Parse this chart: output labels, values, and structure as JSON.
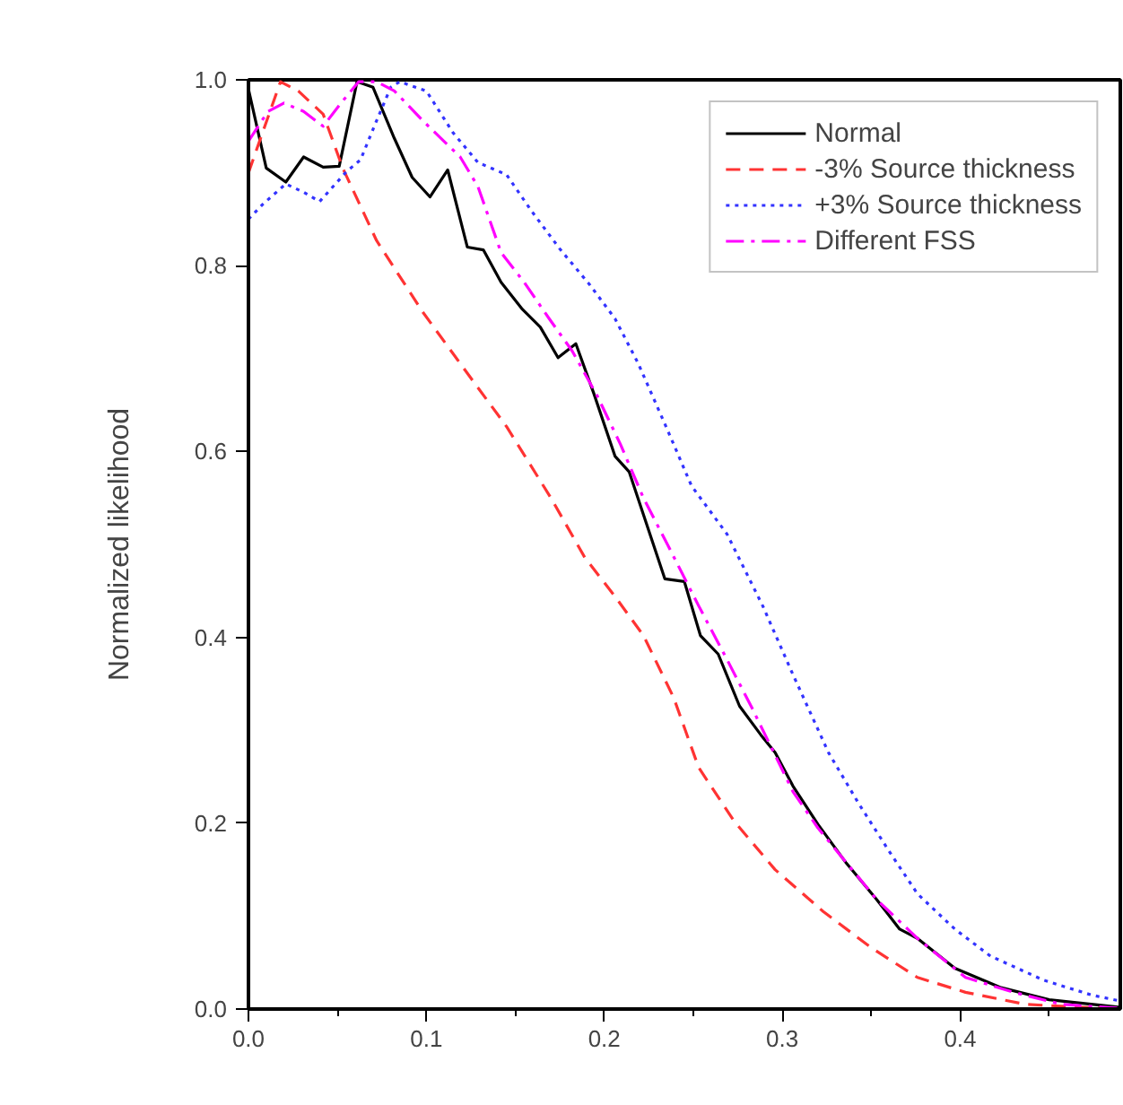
{
  "chart_data": {
    "type": "line",
    "ylabel": "Normalized likelihood",
    "xlim": [
      0,
      0.49
    ],
    "ylim": [
      0,
      1
    ],
    "xticks": [
      {
        "value": 0,
        "label": "0.0"
      },
      {
        "value": 0.05,
        "label": null
      },
      0.1,
      {
        "value": 0.15,
        "label": null
      },
      0.2,
      {
        "value": 0.25,
        "label": null
      },
      0.3,
      {
        "value": 0.35,
        "label": null
      },
      0.4,
      {
        "value": 0.45,
        "label": null
      }
    ],
    "yticks": [
      {
        "value": 0,
        "label": "0.0"
      },
      0.2,
      0.4,
      0.6,
      0.8,
      {
        "value": 1,
        "label": "1.0"
      }
    ],
    "grid": false,
    "legend": "top right",
    "marker": "none",
    "series": [
      {
        "name": "Normal",
        "color": "#000000",
        "line_style": "solid",
        "x": [
          0,
          0.01,
          0.021,
          0.031,
          0.042,
          0.051,
          0.061,
          0.07,
          0.082,
          0.092,
          0.102,
          0.112,
          0.123,
          0.132,
          0.142,
          0.154,
          0.164,
          0.174,
          0.184,
          0.194,
          0.206,
          0.214,
          0.234,
          0.245,
          0.254,
          0.264,
          0.276,
          0.288,
          0.296,
          0.306,
          0.32,
          0.336,
          0.353,
          0.366,
          0.376,
          0.397,
          0.423,
          0.45,
          0.489
        ],
        "values": [
          0.99,
          0.905,
          0.89,
          0.917,
          0.906,
          0.907,
          0.998,
          0.992,
          0.937,
          0.895,
          0.874,
          0.903,
          0.82,
          0.817,
          0.782,
          0.753,
          0.734,
          0.701,
          0.716,
          0.663,
          0.595,
          0.578,
          0.463,
          0.46,
          0.402,
          0.382,
          0.326,
          0.295,
          0.276,
          0.24,
          0.199,
          0.157,
          0.118,
          0.086,
          0.076,
          0.044,
          0.023,
          0.01,
          0.002
        ]
      },
      {
        "name": "-3% Source thickness",
        "color": "#ff3333",
        "line_style": "dashed",
        "x": [
          0,
          0.018,
          0.028,
          0.042,
          0.053,
          0.072,
          0.098,
          0.125,
          0.145,
          0.17,
          0.189,
          0.206,
          0.222,
          0.239,
          0.253,
          0.273,
          0.296,
          0.323,
          0.35,
          0.376,
          0.403,
          0.437,
          0.489
        ],
        "values": [
          0.9,
          0.998,
          0.988,
          0.963,
          0.905,
          0.827,
          0.75,
          0.679,
          0.627,
          0.55,
          0.486,
          0.444,
          0.402,
          0.335,
          0.26,
          0.202,
          0.15,
          0.105,
          0.066,
          0.034,
          0.018,
          0.005,
          0
        ]
      },
      {
        "name": "+3% Source thickness",
        "color": "#3333ff",
        "line_style": "dotted",
        "x": [
          0,
          0.008,
          0.021,
          0.031,
          0.04,
          0.055,
          0.063,
          0.072,
          0.08,
          0.085,
          0.1,
          0.115,
          0.129,
          0.145,
          0.159,
          0.175,
          0.192,
          0.206,
          0.219,
          0.236,
          0.249,
          0.269,
          0.289,
          0.306,
          0.326,
          0.343,
          0.36,
          0.376,
          0.397,
          0.417,
          0.447,
          0.474,
          0.489
        ],
        "values": [
          0.85,
          0.866,
          0.888,
          0.879,
          0.869,
          0.901,
          0.914,
          0.956,
          0.992,
          0.998,
          0.988,
          0.943,
          0.911,
          0.898,
          0.859,
          0.818,
          0.779,
          0.743,
          0.695,
          0.621,
          0.563,
          0.511,
          0.434,
          0.36,
          0.276,
          0.221,
          0.17,
          0.124,
          0.086,
          0.057,
          0.031,
          0.015,
          0.009
        ]
      },
      {
        "name": "Different FSS",
        "color": "#ff00ff",
        "line_style": "dashdot",
        "x": [
          0,
          0.011,
          0.02,
          0.031,
          0.042,
          0.052,
          0.062,
          0.072,
          0.082,
          0.098,
          0.119,
          0.129,
          0.142,
          0.155,
          0.169,
          0.182,
          0.196,
          0.209,
          0.222,
          0.236,
          0.253,
          0.269,
          0.283,
          0.306,
          0.32,
          0.353,
          0.376,
          0.403,
          0.43,
          0.457,
          0.489
        ],
        "values": [
          0.934,
          0.966,
          0.975,
          0.966,
          0.95,
          0.975,
          0.998,
          0.998,
          0.988,
          0.956,
          0.917,
          0.885,
          0.814,
          0.782,
          0.743,
          0.708,
          0.66,
          0.608,
          0.55,
          0.498,
          0.434,
          0.376,
          0.324,
          0.234,
          0.195,
          0.118,
          0.076,
          0.034,
          0.018,
          0.005,
          0.001
        ]
      }
    ]
  }
}
